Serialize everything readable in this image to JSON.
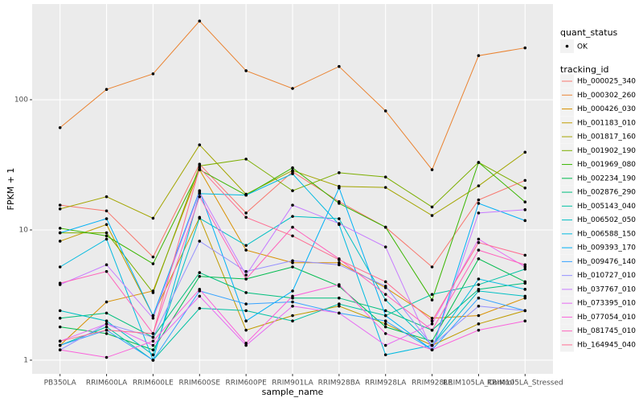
{
  "chart_data": {
    "type": "line",
    "xlabel": "sample_name",
    "ylabel": "FPKM + 1",
    "categories": [
      "PB350LA",
      "RRIM600LA",
      "RRIM600LE",
      "RRIM600SE",
      "RRIM600PE",
      "RRIM901LA",
      "RRIM928BA",
      "RRIM928LA",
      "RRIM928LE",
      "RRIM105LA_Control",
      "RRIM105LA_Stressed"
    ],
    "ylim": [
      0.785,
      543
    ],
    "yticks": [
      1,
      10,
      100
    ],
    "log_y": true,
    "grid": true,
    "point_legend": {
      "title": "quant_status",
      "label": "OK",
      "color": "#000000"
    },
    "legend_title": "tracking_id",
    "series": [
      {
        "name": "Hb_000025_340",
        "color": "#F8766D",
        "values": [
          15.5,
          14,
          6.2,
          32,
          13.5,
          28,
          16.5,
          10.5,
          5.2,
          17,
          24
        ]
      },
      {
        "name": "Hb_000302_260",
        "color": "#EA8331",
        "values": [
          61,
          120,
          158,
          402,
          167,
          122,
          180,
          82,
          29,
          218,
          250
        ]
      },
      {
        "name": "Hb_000426_030",
        "color": "#D89000",
        "values": [
          1.3,
          2.8,
          3.4,
          29,
          7,
          5.6,
          5.6,
          3.6,
          2.1,
          2.2,
          3.0
        ]
      },
      {
        "name": "Hb_001183_010",
        "color": "#C09B00",
        "values": [
          8.2,
          11,
          2.2,
          12.5,
          1.7,
          2.2,
          2.6,
          1.9,
          1.3,
          1.9,
          2.4
        ]
      },
      {
        "name": "Hb_001817_160",
        "color": "#A3A500",
        "values": [
          14.5,
          18,
          12.3,
          45,
          18.8,
          28.6,
          21.6,
          21.2,
          12.9,
          21.8,
          39.5
        ]
      },
      {
        "name": "Hb_001902_190",
        "color": "#7CAE00",
        "values": [
          9.5,
          9.5,
          3.3,
          31,
          35,
          20,
          27.5,
          25.5,
          15,
          33,
          21
        ]
      },
      {
        "name": "Hb_001969_080",
        "color": "#39B600",
        "values": [
          10.3,
          9,
          5.5,
          29,
          18.5,
          30,
          16,
          10.5,
          2.9,
          33,
          16.4
        ]
      },
      {
        "name": "Hb_002234_190",
        "color": "#00BB4E",
        "values": [
          1.8,
          1.6,
          1.2,
          4.4,
          4.2,
          5.2,
          3.7,
          1.8,
          1.4,
          6,
          4
        ]
      },
      {
        "name": "Hb_002876_290",
        "color": "#00BF7D",
        "values": [
          2.1,
          2.3,
          1.5,
          4.7,
          3.3,
          3.0,
          3.0,
          2.4,
          1.7,
          3.5,
          3.9
        ]
      },
      {
        "name": "Hb_005143_040",
        "color": "#00C1A3",
        "values": [
          1.3,
          1.8,
          1.0,
          2.5,
          2.4,
          2.0,
          2.7,
          2.2,
          3.2,
          3.8,
          5.0
        ]
      },
      {
        "name": "Hb_006502_050",
        "color": "#00BFC4",
        "values": [
          2.4,
          2.0,
          1.1,
          12.3,
          7.6,
          12.7,
          12.2,
          2.9,
          1.3,
          3.4,
          3.1
        ]
      },
      {
        "name": "Hb_006588_150",
        "color": "#00BAE0",
        "values": [
          5.2,
          8.5,
          1.0,
          19,
          18.5,
          27,
          11,
          1.1,
          1.3,
          4.2,
          3.5
        ]
      },
      {
        "name": "Hb_009393_170",
        "color": "#00B0F6",
        "values": [
          9.5,
          12.2,
          2.2,
          20,
          2.0,
          3.4,
          21,
          2.2,
          1.2,
          16,
          11.8
        ]
      },
      {
        "name": "Hb_009476_140",
        "color": "#35A2FF",
        "values": [
          1.3,
          1.7,
          1.0,
          3.4,
          2.7,
          2.8,
          2.3,
          2.0,
          1.2,
          3.0,
          2.4
        ]
      },
      {
        "name": "Hb_010727_010",
        "color": "#9590FF",
        "values": [
          1.2,
          1.9,
          1.5,
          8.2,
          4.8,
          5.8,
          5.4,
          3.7,
          1.3,
          2.6,
          2.4
        ]
      },
      {
        "name": "Hb_037767_010",
        "color": "#C77CFF",
        "values": [
          3.8,
          5.4,
          2.1,
          19.5,
          4.5,
          15.5,
          11.2,
          7.4,
          1.2,
          13.5,
          14.3
        ]
      },
      {
        "name": "Hb_073395_010",
        "color": "#E76BF3",
        "values": [
          1.4,
          1.9,
          1.3,
          3.1,
          1.3,
          2.6,
          2.3,
          1.3,
          1.9,
          8.5,
          5.2
        ]
      },
      {
        "name": "Hb_077054_010",
        "color": "#FA62DB",
        "values": [
          1.2,
          1.05,
          1.4,
          3.5,
          1.35,
          3.1,
          3.8,
          1.6,
          1.2,
          1.7,
          2.0
        ]
      },
      {
        "name": "Hb_081745_010",
        "color": "#FF62BC",
        "values": [
          3.9,
          4.8,
          1.6,
          18,
          4.2,
          10.5,
          6,
          3.2,
          1.7,
          7,
          5.4
        ]
      },
      {
        "name": "Hb_164945_040",
        "color": "#FF6C91",
        "values": [
          1.4,
          1.7,
          1.6,
          30,
          12.5,
          9,
          5.9,
          4,
          2,
          8,
          6.4
        ]
      }
    ]
  }
}
